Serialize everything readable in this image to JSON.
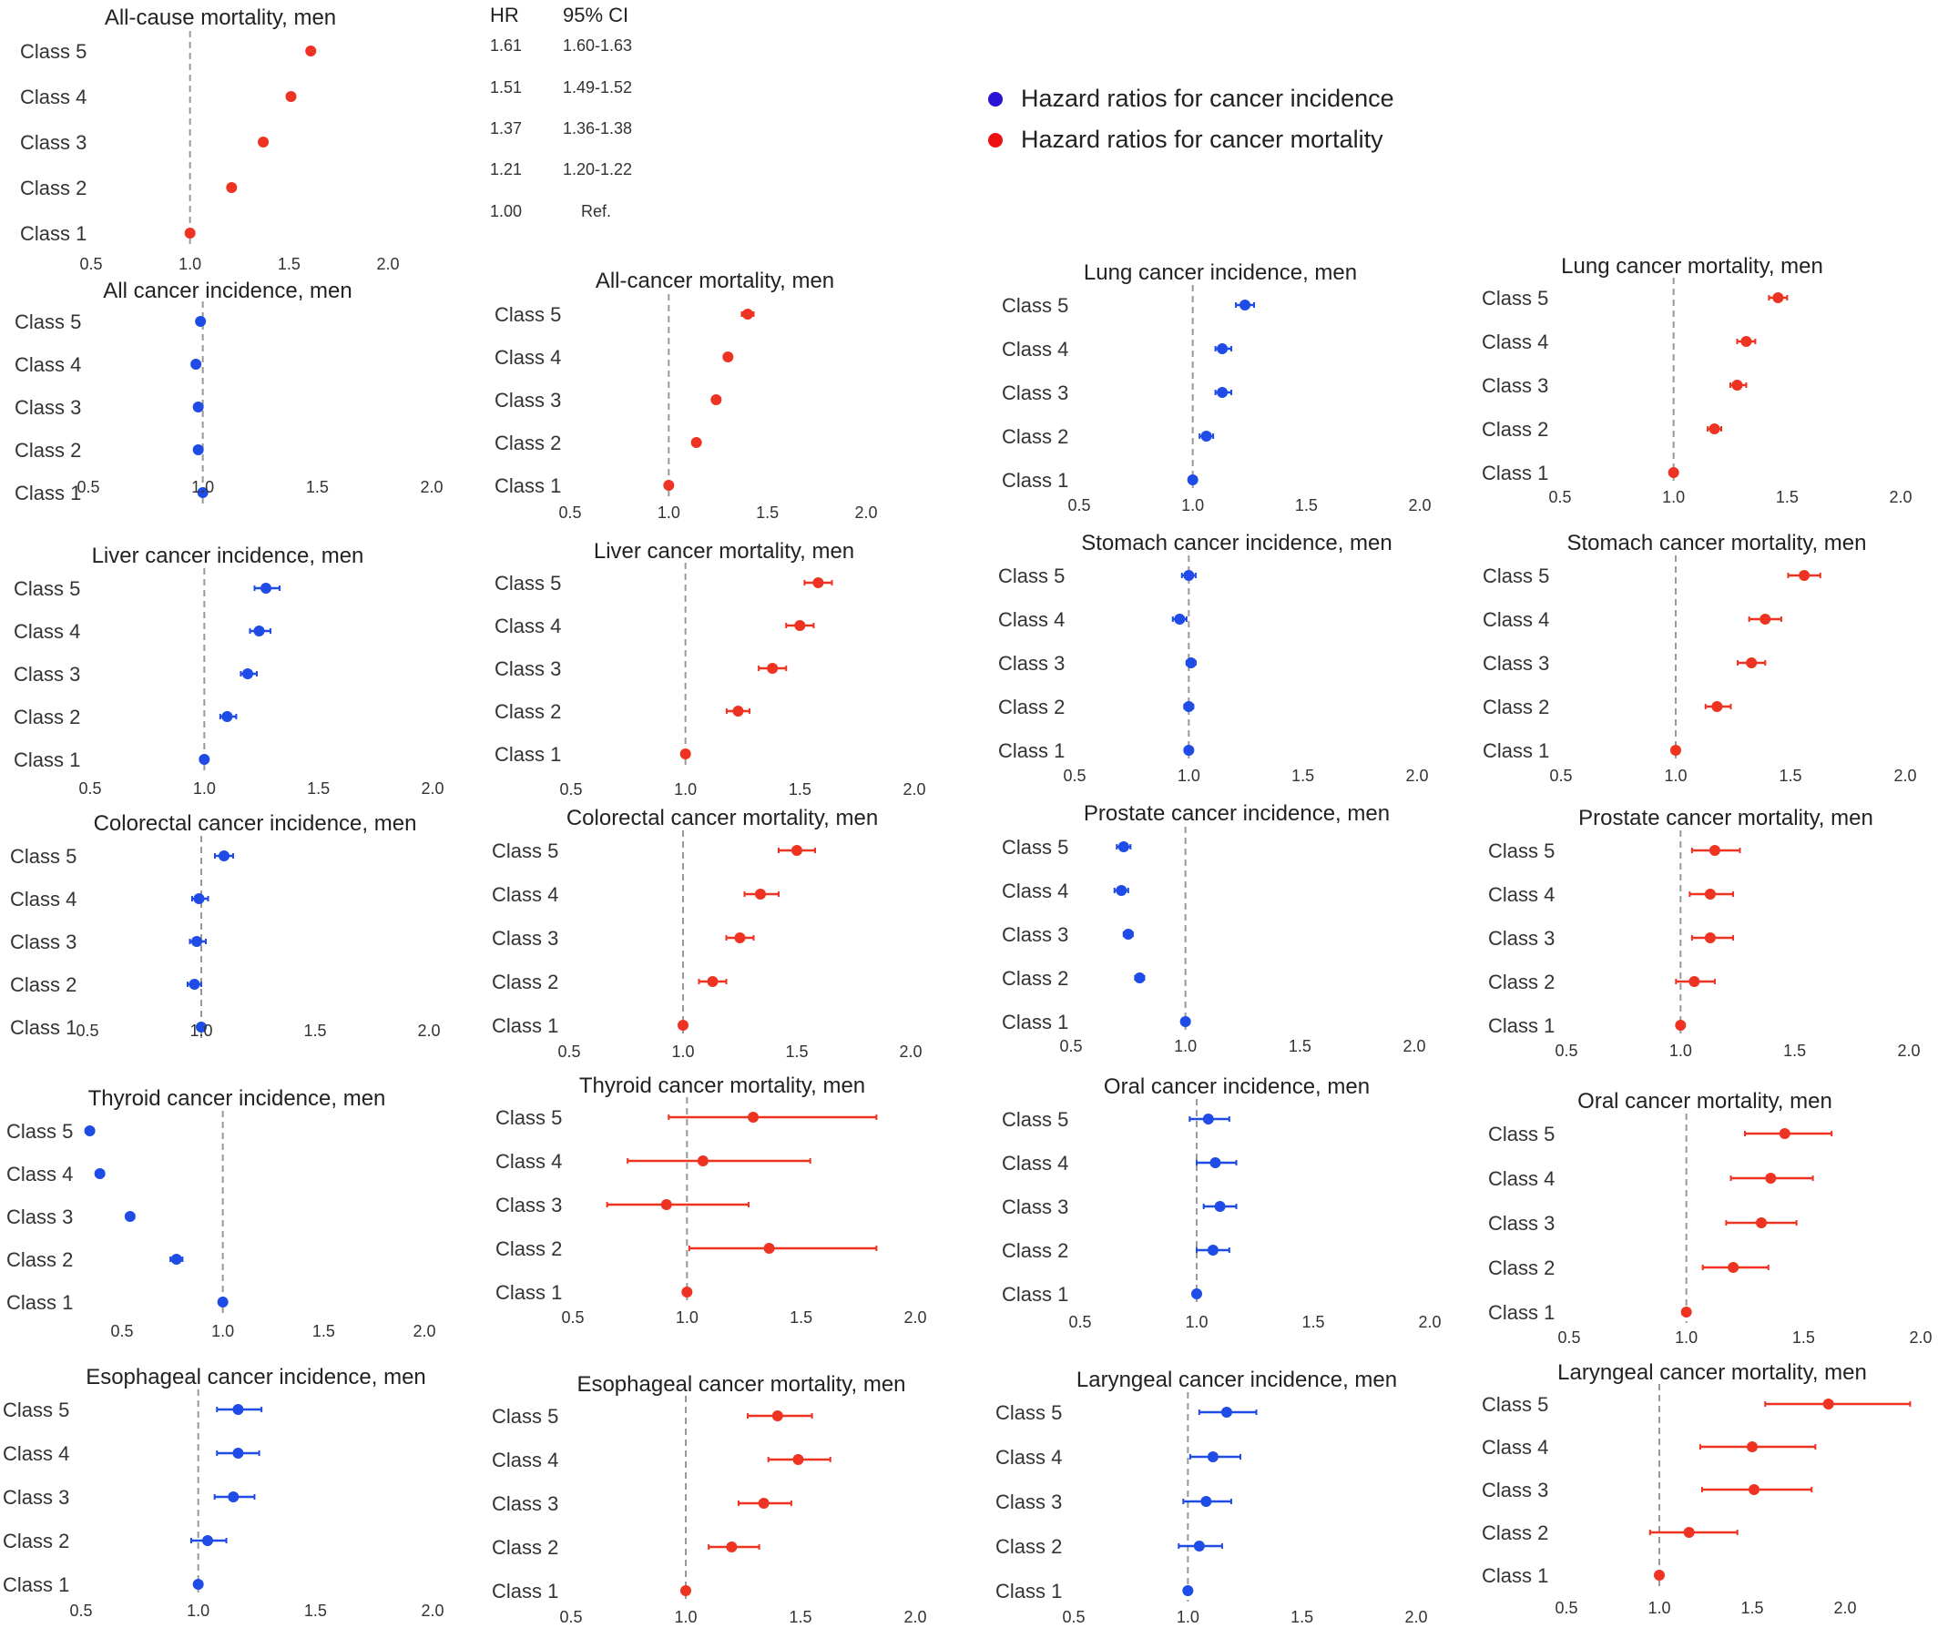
{
  "colors": {
    "incidence": "#1f4be6",
    "mortality": "#ee3322",
    "reference_line": "#999999"
  },
  "legend": {
    "incidence_label": "Hazard ratios for cancer incidence",
    "mortality_label": "Hazard ratios for cancer mortality",
    "incidence_color": "#2a12d6",
    "mortality_color": "#ee1111"
  },
  "hr_table": {
    "header_hr": "HR",
    "header_ci": "95% CI",
    "rows": [
      {
        "hr": "1.61",
        "ci": "1.60-1.63"
      },
      {
        "hr": "1.51",
        "ci": "1.49-1.52"
      },
      {
        "hr": "1.37",
        "ci": "1.36-1.38"
      },
      {
        "hr": "1.21",
        "ci": "1.20-1.22"
      },
      {
        "hr": "1.00",
        "ci": "Ref."
      }
    ]
  },
  "chart_data": [
    {
      "type": "scatter",
      "title": "All-cause mortality, men",
      "measure": "mortality",
      "categories": [
        "Class 5",
        "Class 4",
        "Class 3",
        "Class 2",
        "Class 1"
      ],
      "hr": [
        1.61,
        1.51,
        1.37,
        1.21,
        1.0
      ],
      "lower": [
        1.6,
        1.49,
        1.36,
        1.2,
        1.0
      ],
      "upper": [
        1.63,
        1.52,
        1.38,
        1.22,
        1.0
      ],
      "xlim": [
        0.5,
        2.0
      ],
      "xticks": [
        "0.5",
        "1.0",
        "1.5",
        "2.0"
      ]
    },
    {
      "type": "scatter",
      "title": "All cancer incidence, men",
      "measure": "incidence",
      "categories": [
        "Class 5",
        "Class 4",
        "Class 3",
        "Class 2",
        "Class 1"
      ],
      "hr": [
        0.99,
        0.97,
        0.98,
        0.98,
        1.0
      ],
      "lower": [
        0.98,
        0.96,
        0.97,
        0.97,
        1.0
      ],
      "upper": [
        1.0,
        0.98,
        0.99,
        0.99,
        1.0
      ],
      "xlim": [
        0.5,
        2.0
      ],
      "xticks": [
        "0.5",
        "1.0",
        "1.5",
        "2.0"
      ]
    },
    {
      "type": "scatter",
      "title": "All-cancer mortality, men",
      "measure": "mortality",
      "categories": [
        "Class 5",
        "Class 4",
        "Class 3",
        "Class 2",
        "Class 1"
      ],
      "hr": [
        1.4,
        1.3,
        1.24,
        1.14,
        1.0
      ],
      "lower": [
        1.37,
        1.28,
        1.22,
        1.12,
        1.0
      ],
      "upper": [
        1.43,
        1.32,
        1.26,
        1.16,
        1.0
      ],
      "xlim": [
        0.5,
        2.0
      ],
      "xticks": [
        "0.5",
        "1.0",
        "1.5",
        "2.0"
      ]
    },
    {
      "type": "scatter",
      "title": "Lung cancer incidence, men",
      "measure": "incidence",
      "categories": [
        "Class 5",
        "Class 4",
        "Class 3",
        "Class 2",
        "Class 1"
      ],
      "hr": [
        1.23,
        1.13,
        1.13,
        1.06,
        1.0
      ],
      "lower": [
        1.19,
        1.1,
        1.1,
        1.03,
        1.0
      ],
      "upper": [
        1.27,
        1.17,
        1.17,
        1.09,
        1.0
      ],
      "xlim": [
        0.5,
        2.0
      ],
      "xticks": [
        "0.5",
        "1.0",
        "1.5",
        "2.0"
      ]
    },
    {
      "type": "scatter",
      "title": "Lung cancer mortality, men",
      "measure": "mortality",
      "categories": [
        "Class 5",
        "Class 4",
        "Class 3",
        "Class 2",
        "Class 1"
      ],
      "hr": [
        1.46,
        1.32,
        1.28,
        1.18,
        1.0
      ],
      "lower": [
        1.42,
        1.28,
        1.25,
        1.15,
        1.0
      ],
      "upper": [
        1.5,
        1.36,
        1.32,
        1.21,
        1.0
      ],
      "xlim": [
        0.5,
        2.0
      ],
      "xticks": [
        "0.5",
        "1.0",
        "1.5",
        "2.0"
      ]
    },
    {
      "type": "scatter",
      "title": "Liver cancer incidence, men",
      "measure": "incidence",
      "categories": [
        "Class 5",
        "Class 4",
        "Class 3",
        "Class 2",
        "Class 1"
      ],
      "hr": [
        1.27,
        1.24,
        1.19,
        1.1,
        1.0
      ],
      "lower": [
        1.22,
        1.2,
        1.16,
        1.07,
        1.0
      ],
      "upper": [
        1.33,
        1.29,
        1.23,
        1.14,
        1.0
      ],
      "xlim": [
        0.5,
        2.0
      ],
      "xticks": [
        "0.5",
        "1.0",
        "1.5",
        "2.0"
      ]
    },
    {
      "type": "scatter",
      "title": "Liver cancer mortality, men",
      "measure": "mortality",
      "categories": [
        "Class 5",
        "Class 4",
        "Class 3",
        "Class 2",
        "Class 1"
      ],
      "hr": [
        1.58,
        1.5,
        1.38,
        1.23,
        1.0
      ],
      "lower": [
        1.52,
        1.44,
        1.32,
        1.18,
        1.0
      ],
      "upper": [
        1.64,
        1.56,
        1.44,
        1.28,
        1.0
      ],
      "xlim": [
        0.5,
        2.0
      ],
      "xticks": [
        "0.5",
        "1.0",
        "1.5",
        "2.0"
      ]
    },
    {
      "type": "scatter",
      "title": "Stomach cancer incidence, men",
      "measure": "incidence",
      "categories": [
        "Class 5",
        "Class 4",
        "Class 3",
        "Class 2",
        "Class 1"
      ],
      "hr": [
        1.0,
        0.96,
        1.01,
        1.0,
        1.0
      ],
      "lower": [
        0.97,
        0.93,
        0.99,
        0.98,
        1.0
      ],
      "upper": [
        1.03,
        0.99,
        1.03,
        1.02,
        1.0
      ],
      "xlim": [
        0.5,
        2.0
      ],
      "xticks": [
        "0.5",
        "1.0",
        "1.5",
        "2.0"
      ]
    },
    {
      "type": "scatter",
      "title": "Stomach cancer mortality, men",
      "measure": "mortality",
      "categories": [
        "Class 5",
        "Class 4",
        "Class 3",
        "Class 2",
        "Class 1"
      ],
      "hr": [
        1.56,
        1.39,
        1.33,
        1.18,
        1.0
      ],
      "lower": [
        1.49,
        1.32,
        1.27,
        1.13,
        1.0
      ],
      "upper": [
        1.63,
        1.46,
        1.39,
        1.24,
        1.0
      ],
      "xlim": [
        0.5,
        2.0
      ],
      "xticks": [
        "0.5",
        "1.0",
        "1.5",
        "2.0"
      ]
    },
    {
      "type": "scatter",
      "title": "Colorectal cancer incidence, men",
      "measure": "incidence",
      "categories": [
        "Class 5",
        "Class 4",
        "Class 3",
        "Class 2",
        "Class 1"
      ],
      "hr": [
        1.1,
        0.99,
        0.98,
        0.97,
        1.0
      ],
      "lower": [
        1.06,
        0.96,
        0.95,
        0.94,
        1.0
      ],
      "upper": [
        1.14,
        1.03,
        1.02,
        1.0,
        1.0
      ],
      "xlim": [
        0.5,
        2.0
      ],
      "xticks": [
        "0.5",
        "1.0",
        "1.5",
        "2.0"
      ]
    },
    {
      "type": "scatter",
      "title": "Colorectal cancer mortality, men",
      "measure": "mortality",
      "categories": [
        "Class 5",
        "Class 4",
        "Class 3",
        "Class 2",
        "Class 1"
      ],
      "hr": [
        1.5,
        1.34,
        1.25,
        1.13,
        1.0
      ],
      "lower": [
        1.42,
        1.27,
        1.19,
        1.07,
        1.0
      ],
      "upper": [
        1.58,
        1.42,
        1.31,
        1.19,
        1.0
      ],
      "xlim": [
        0.5,
        2.0
      ],
      "xticks": [
        "0.5",
        "1.0",
        "1.5",
        "2.0"
      ]
    },
    {
      "type": "scatter",
      "title": "Prostate cancer incidence, men",
      "measure": "incidence",
      "categories": [
        "Class 5",
        "Class 4",
        "Class 3",
        "Class 2",
        "Class 1"
      ],
      "hr": [
        0.73,
        0.72,
        0.75,
        0.8,
        1.0
      ],
      "lower": [
        0.7,
        0.69,
        0.73,
        0.78,
        1.0
      ],
      "upper": [
        0.76,
        0.75,
        0.77,
        0.82,
        1.0
      ],
      "xlim": [
        0.5,
        2.0
      ],
      "xticks": [
        "0.5",
        "1.0",
        "1.5",
        "2.0"
      ]
    },
    {
      "type": "scatter",
      "title": "Prostate cancer mortality, men",
      "measure": "mortality",
      "categories": [
        "Class 5",
        "Class 4",
        "Class 3",
        "Class 2",
        "Class 1"
      ],
      "hr": [
        1.15,
        1.13,
        1.13,
        1.06,
        1.0
      ],
      "lower": [
        1.05,
        1.04,
        1.05,
        0.98,
        1.0
      ],
      "upper": [
        1.26,
        1.23,
        1.23,
        1.15,
        1.0
      ],
      "xlim": [
        0.5,
        2.0
      ],
      "xticks": [
        "0.5",
        "1.0",
        "1.5",
        "2.0"
      ]
    },
    {
      "type": "scatter",
      "title": "Thyroid cancer incidence, men",
      "measure": "incidence",
      "categories": [
        "Class 5",
        "Class 4",
        "Class 3",
        "Class 2",
        "Class 1"
      ],
      "hr": [
        0.34,
        0.39,
        0.54,
        0.77,
        1.0
      ],
      "lower": [
        0.32,
        0.37,
        0.52,
        0.74,
        1.0
      ],
      "upper": [
        0.36,
        0.41,
        0.56,
        0.8,
        1.0
      ],
      "xlim": [
        0.5,
        2.0
      ],
      "xticks": [
        "0.5",
        "1.0",
        "1.5",
        "2.0"
      ]
    },
    {
      "type": "scatter",
      "title": "Thyroid cancer mortality, men",
      "measure": "mortality",
      "categories": [
        "Class 5",
        "Class 4",
        "Class 3",
        "Class 2",
        "Class 1"
      ],
      "hr": [
        1.29,
        1.07,
        0.91,
        1.36,
        1.0
      ],
      "lower": [
        0.92,
        0.74,
        0.65,
        1.01,
        1.0
      ],
      "upper": [
        1.83,
        1.54,
        1.27,
        1.83,
        1.0
      ],
      "xlim": [
        0.5,
        2.0
      ],
      "xticks": [
        "0.5",
        "1.0",
        "1.5",
        "2.0"
      ]
    },
    {
      "type": "scatter",
      "title": "Oral cancer incidence, men",
      "measure": "incidence",
      "categories": [
        "Class 5",
        "Class 4",
        "Class 3",
        "Class 2",
        "Class 1"
      ],
      "hr": [
        1.05,
        1.08,
        1.1,
        1.07,
        1.0
      ],
      "lower": [
        0.97,
        1.0,
        1.03,
        1.0,
        1.0
      ],
      "upper": [
        1.14,
        1.17,
        1.17,
        1.14,
        1.0
      ],
      "xlim": [
        0.5,
        2.0
      ],
      "xticks": [
        "0.5",
        "1.0",
        "1.5",
        "2.0"
      ]
    },
    {
      "type": "scatter",
      "title": "Oral cancer mortality, men",
      "measure": "mortality",
      "categories": [
        "Class 5",
        "Class 4",
        "Class 3",
        "Class 2",
        "Class 1"
      ],
      "hr": [
        1.42,
        1.36,
        1.32,
        1.2,
        1.0
      ],
      "lower": [
        1.25,
        1.19,
        1.17,
        1.07,
        1.0
      ],
      "upper": [
        1.62,
        1.54,
        1.47,
        1.35,
        1.0
      ],
      "xlim": [
        0.5,
        2.0
      ],
      "xticks": [
        "0.5",
        "1.0",
        "1.5",
        "2.0"
      ]
    },
    {
      "type": "scatter",
      "title": "Esophageal cancer incidence, men",
      "measure": "incidence",
      "categories": [
        "Class 5",
        "Class 4",
        "Class 3",
        "Class 2",
        "Class 1"
      ],
      "hr": [
        1.17,
        1.17,
        1.15,
        1.04,
        1.0
      ],
      "lower": [
        1.08,
        1.08,
        1.07,
        0.97,
        1.0
      ],
      "upper": [
        1.27,
        1.26,
        1.24,
        1.12,
        1.0
      ],
      "xlim": [
        0.5,
        2.0
      ],
      "xticks": [
        "0.5",
        "1.0",
        "1.5",
        "2.0"
      ]
    },
    {
      "type": "scatter",
      "title": "Esophageal cancer mortality, men",
      "measure": "mortality",
      "categories": [
        "Class 5",
        "Class 4",
        "Class 3",
        "Class 2",
        "Class 1"
      ],
      "hr": [
        1.4,
        1.49,
        1.34,
        1.2,
        1.0
      ],
      "lower": [
        1.27,
        1.36,
        1.23,
        1.1,
        1.0
      ],
      "upper": [
        1.55,
        1.63,
        1.46,
        1.32,
        1.0
      ],
      "xlim": [
        0.5,
        2.0
      ],
      "xticks": [
        "0.5",
        "1.0",
        "1.5",
        "2.0"
      ]
    },
    {
      "type": "scatter",
      "title": "Laryngeal cancer incidence, men",
      "measure": "incidence",
      "categories": [
        "Class 5",
        "Class 4",
        "Class 3",
        "Class 2",
        "Class 1"
      ],
      "hr": [
        1.17,
        1.11,
        1.08,
        1.05,
        1.0
      ],
      "lower": [
        1.05,
        1.01,
        0.98,
        0.96,
        1.0
      ],
      "upper": [
        1.3,
        1.23,
        1.19,
        1.15,
        1.0
      ],
      "xlim": [
        0.5,
        2.0
      ],
      "xticks": [
        "0.5",
        "1.0",
        "1.5",
        "2.0"
      ]
    },
    {
      "type": "scatter",
      "title": "Laryngeal cancer mortality, men",
      "measure": "mortality",
      "categories": [
        "Class 5",
        "Class 4",
        "Class 3",
        "Class 2",
        "Class 1"
      ],
      "hr": [
        1.91,
        1.5,
        1.51,
        1.16,
        1.0
      ],
      "lower": [
        1.57,
        1.22,
        1.23,
        0.95,
        1.0
      ],
      "upper": [
        2.35,
        1.84,
        1.82,
        1.42,
        1.0
      ],
      "xlim": [
        0.5,
        2.0
      ],
      "xticks": [
        "0.5",
        "1.0",
        "1.5",
        "2.0"
      ]
    }
  ]
}
